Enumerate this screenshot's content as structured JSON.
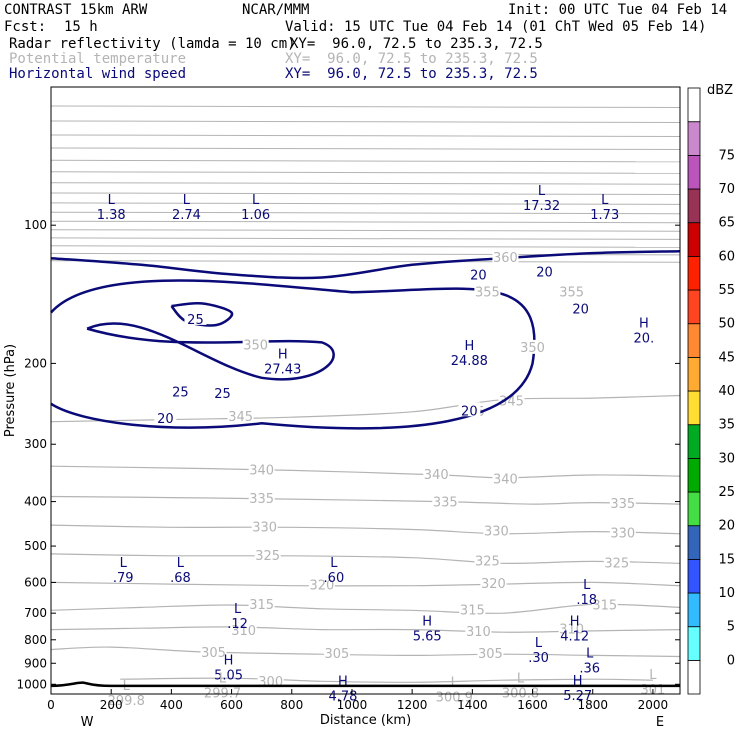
{
  "header": {
    "model": "CONTRAST 15km ARW",
    "org": "NCAR/MMM",
    "init": "Init: 00 UTC Tue 04 Feb 14",
    "fcst_label": "Fcst:",
    "fcst_value": "15 h",
    "valid": "Valid: 15 UTC Tue 04 Feb 14 (01 ChT Wed 05 Feb 14)",
    "fields": [
      {
        "name": "Radar reflectivity (lamda = 10 cm)",
        "xy": "XY=  96.0, 72.5 to 235.3, 72.5",
        "color": "#000000"
      },
      {
        "name": "Potential temperature",
        "xy": "XY=  96.0, 72.5 to 235.3, 72.5",
        "color": "#b4b4b4"
      },
      {
        "name": "Horizontal wind speed",
        "xy": "XY=  96.0, 72.5 to 235.3, 72.5",
        "color": "#0a0a78"
      }
    ]
  },
  "chart_data": {
    "type": "contour",
    "xlabel": "Distance (km)",
    "ylabel": "Pressure (hPa)",
    "x_ticks": [
      0,
      200,
      400,
      600,
      800,
      1000,
      1200,
      1400,
      1600,
      1800,
      2000
    ],
    "y_ticks": [
      100,
      200,
      300,
      400,
      500,
      600,
      700,
      800,
      900,
      1000
    ],
    "xlim": [
      0,
      2090
    ],
    "ylim_log_pressure": [
      1050,
      50
    ],
    "x_end_labels": {
      "left": "W",
      "right": "E"
    },
    "theta_contours": [
      {
        "value": 345,
        "p": [
          [
            0,
            268
          ],
          [
            400,
            265
          ],
          [
            800,
            262
          ],
          [
            1200,
            255
          ],
          [
            1500,
            240
          ],
          [
            1800,
            238
          ],
          [
            2090,
            235
          ]
        ],
        "labels": [
          [
            630,
            262
          ],
          [
            1400,
            255
          ],
          [
            1530,
            242
          ]
        ]
      },
      {
        "value": 340,
        "p": [
          [
            0,
            335
          ],
          [
            400,
            338
          ],
          [
            800,
            342
          ],
          [
            1300,
            350
          ],
          [
            1500,
            355
          ],
          [
            1800,
            350
          ],
          [
            2090,
            352
          ]
        ],
        "labels": [
          [
            700,
            342
          ],
          [
            1280,
            350
          ],
          [
            1510,
            358
          ]
        ]
      },
      {
        "value": 335,
        "p": [
          [
            0,
            390
          ],
          [
            400,
            392
          ],
          [
            800,
            395
          ],
          [
            1300,
            400
          ],
          [
            1600,
            405
          ],
          [
            1800,
            402
          ],
          [
            2090,
            405
          ]
        ],
        "labels": [
          [
            700,
            395
          ],
          [
            1310,
            402
          ],
          [
            1900,
            405
          ]
        ]
      },
      {
        "value": 330,
        "p": [
          [
            0,
            450
          ],
          [
            400,
            455
          ],
          [
            800,
            455
          ],
          [
            1200,
            460
          ],
          [
            1500,
            470
          ],
          [
            1800,
            465
          ],
          [
            2090,
            470
          ]
        ],
        "labels": [
          [
            710,
            455
          ],
          [
            1480,
            465
          ],
          [
            1900,
            470
          ]
        ]
      },
      {
        "value": 325,
        "p": [
          [
            0,
            520
          ],
          [
            400,
            525
          ],
          [
            800,
            525
          ],
          [
            1200,
            530
          ],
          [
            1500,
            545
          ],
          [
            1800,
            540
          ],
          [
            2090,
            545
          ]
        ],
        "labels": [
          [
            720,
            525
          ],
          [
            1450,
            540
          ],
          [
            1880,
            545
          ]
        ]
      },
      {
        "value": 320,
        "p": [
          [
            0,
            600
          ],
          [
            400,
            605
          ],
          [
            800,
            610
          ],
          [
            1200,
            610
          ],
          [
            1500,
            605
          ],
          [
            1800,
            600
          ],
          [
            2090,
            610
          ]
        ],
        "labels": [
          [
            900,
            610
          ],
          [
            1470,
            605
          ]
        ]
      },
      {
        "value": 315,
        "p": [
          [
            0,
            690
          ],
          [
            300,
            680
          ],
          [
            600,
            672
          ],
          [
            900,
            685
          ],
          [
            1200,
            690
          ],
          [
            1500,
            700
          ],
          [
            1800,
            670
          ],
          [
            2090,
            680
          ]
        ],
        "labels": [
          [
            700,
            672
          ],
          [
            1400,
            690
          ],
          [
            1840,
            673
          ]
        ]
      },
      {
        "value": 310,
        "p": [
          [
            0,
            760
          ],
          [
            300,
            755
          ],
          [
            600,
            750
          ],
          [
            900,
            760
          ],
          [
            1200,
            760
          ],
          [
            1500,
            770
          ],
          [
            1800,
            765
          ],
          [
            2090,
            760
          ]
        ],
        "labels": [
          [
            640,
            765
          ],
          [
            1420,
            770
          ],
          [
            1730,
            760
          ]
        ]
      },
      {
        "value": 305,
        "p": [
          [
            0,
            840
          ],
          [
            200,
            830
          ],
          [
            500,
            850
          ],
          [
            900,
            860
          ],
          [
            1200,
            865
          ],
          [
            1500,
            860
          ],
          [
            1800,
            865
          ],
          [
            2090,
            870
          ]
        ],
        "labels": [
          [
            540,
            855
          ],
          [
            950,
            860
          ],
          [
            1460,
            860
          ]
        ]
      },
      {
        "value": 300,
        "p": [
          [
            230,
            975
          ],
          [
            600,
            970
          ],
          [
            900,
            985
          ],
          [
            1200,
            990
          ],
          [
            1500,
            980
          ],
          [
            1800,
            975
          ],
          [
            2000,
            980
          ]
        ],
        "labels": [
          [
            730,
            988
          ]
        ]
      }
    ],
    "wind_contours": [
      {
        "value": 20,
        "p": [
          [
            0,
            118
          ],
          [
            300,
            122
          ],
          [
            600,
            128
          ],
          [
            900,
            130
          ],
          [
            1200,
            122
          ],
          [
            1500,
            118
          ],
          [
            1800,
            115
          ],
          [
            2090,
            114
          ]
        ],
        "labels": [
          [
            1420,
            128
          ],
          [
            1640,
            126
          ]
        ]
      },
      {
        "value": 25,
        "p": [
          [
            400,
            150
          ],
          [
            500,
            148
          ],
          [
            600,
            155
          ],
          [
            550,
            165
          ],
          [
            450,
            162
          ],
          [
            400,
            150
          ]
        ],
        "labels": [
          [
            480,
            160
          ]
        ]
      }
    ],
    "theta_extra_labels": [
      {
        "text": "360",
        "x": 1510,
        "p": 118
      },
      {
        "text": "355",
        "x": 1450,
        "p": 140
      },
      {
        "text": "355",
        "x": 1730,
        "p": 140
      },
      {
        "text": "350",
        "x": 680,
        "p": 183
      },
      {
        "text": "350",
        "x": 1600,
        "p": 185
      }
    ],
    "wind_extra_labels": [
      {
        "text": "20",
        "x": 1760,
        "p": 152
      },
      {
        "text": "20",
        "x": 380,
        "p": 263
      },
      {
        "text": "20",
        "x": 1390,
        "p": 253
      },
      {
        "text": "25",
        "x": 430,
        "p": 230
      },
      {
        "text": "25",
        "x": 570,
        "p": 232
      }
    ],
    "extrema": [
      {
        "mark": "L",
        "value": "1.38",
        "x": 200,
        "p": 90,
        "color": "#0a0a78"
      },
      {
        "mark": "L",
        "value": "2.74",
        "x": 450,
        "p": 90,
        "color": "#0a0a78"
      },
      {
        "mark": "L",
        "value": "1.06",
        "x": 680,
        "p": 90,
        "color": "#0a0a78"
      },
      {
        "mark": "L",
        "value": "17.32",
        "x": 1630,
        "p": 86,
        "color": "#0a0a78"
      },
      {
        "mark": "L",
        "value": "1.73",
        "x": 1840,
        "p": 90,
        "color": "#0a0a78"
      },
      {
        "mark": "H",
        "value": "27.43",
        "x": 770,
        "p": 195,
        "color": "#0a0a78"
      },
      {
        "mark": "H",
        "value": "24.88",
        "x": 1390,
        "p": 187,
        "color": "#0a0a78"
      },
      {
        "mark": "H",
        "value": "20.",
        "x": 1970,
        "p": 167,
        "color": "#0a0a78"
      },
      {
        "mark": "L",
        "value": ".79",
        "x": 240,
        "p": 555,
        "color": "#0a0a78"
      },
      {
        "mark": "L",
        "value": ".68",
        "x": 430,
        "p": 555,
        "color": "#0a0a78"
      },
      {
        "mark": "L",
        "value": ".60",
        "x": 940,
        "p": 555,
        "color": "#0a0a78"
      },
      {
        "mark": "L",
        "value": ".18",
        "x": 1780,
        "p": 620,
        "color": "#0a0a78"
      },
      {
        "mark": "L",
        "value": ".12",
        "x": 620,
        "p": 700,
        "color": "#0a0a78"
      },
      {
        "mark": "H",
        "value": "5.65",
        "x": 1250,
        "p": 745,
        "color": "#0a0a78"
      },
      {
        "mark": "H",
        "value": "4.12",
        "x": 1740,
        "p": 745,
        "color": "#0a0a78"
      },
      {
        "mark": "L",
        "value": ".30",
        "x": 1620,
        "p": 830,
        "color": "#0a0a78"
      },
      {
        "mark": "L",
        "value": ".36",
        "x": 1790,
        "p": 875,
        "color": "#0a0a78"
      },
      {
        "mark": "H",
        "value": "5.05",
        "x": 590,
        "p": 905,
        "color": "#0a0a78"
      },
      {
        "mark": "H",
        "value": "4.78",
        "x": 970,
        "p": 1005,
        "color": "#0a0a78"
      },
      {
        "mark": "H",
        "value": "5.27",
        "x": 1750,
        "p": 1003,
        "color": "#0a0a78"
      },
      {
        "mark": "L",
        "value": "299.7",
        "x": 570,
        "p": 990,
        "color": "#b4b4b4"
      },
      {
        "mark": "L",
        "value": "299.8",
        "x": 250,
        "p": 1030,
        "color": "#b4b4b4"
      },
      {
        "mark": "L",
        "value": "300.9",
        "x": 1340,
        "p": 1010,
        "color": "#b4b4b4"
      },
      {
        "mark": "L",
        "value": "300.8",
        "x": 1560,
        "p": 990,
        "color": "#b4b4b4"
      },
      {
        "mark": "L",
        "value": "301",
        "x": 2000,
        "p": 975,
        "color": "#b4b4b4"
      }
    ],
    "colorbar": {
      "title": "dBZ",
      "labels": [
        "0",
        "5",
        "10",
        "15",
        "20",
        "25",
        "30",
        "35",
        "40",
        "45",
        "50",
        "55",
        "60",
        "65",
        "70",
        "75"
      ],
      "colors": [
        "#ffffff",
        "#66ffff",
        "#33bbff",
        "#3355ff",
        "#3366bb",
        "#44dd44",
        "#00aa00",
        "#00aa22",
        "#ffdd33",
        "#ffaa33",
        "#ff8833",
        "#ff4422",
        "#ff2200",
        "#cc0000",
        "#993355",
        "#bb55bb",
        "#cc88cc",
        "#ffffff"
      ]
    }
  }
}
